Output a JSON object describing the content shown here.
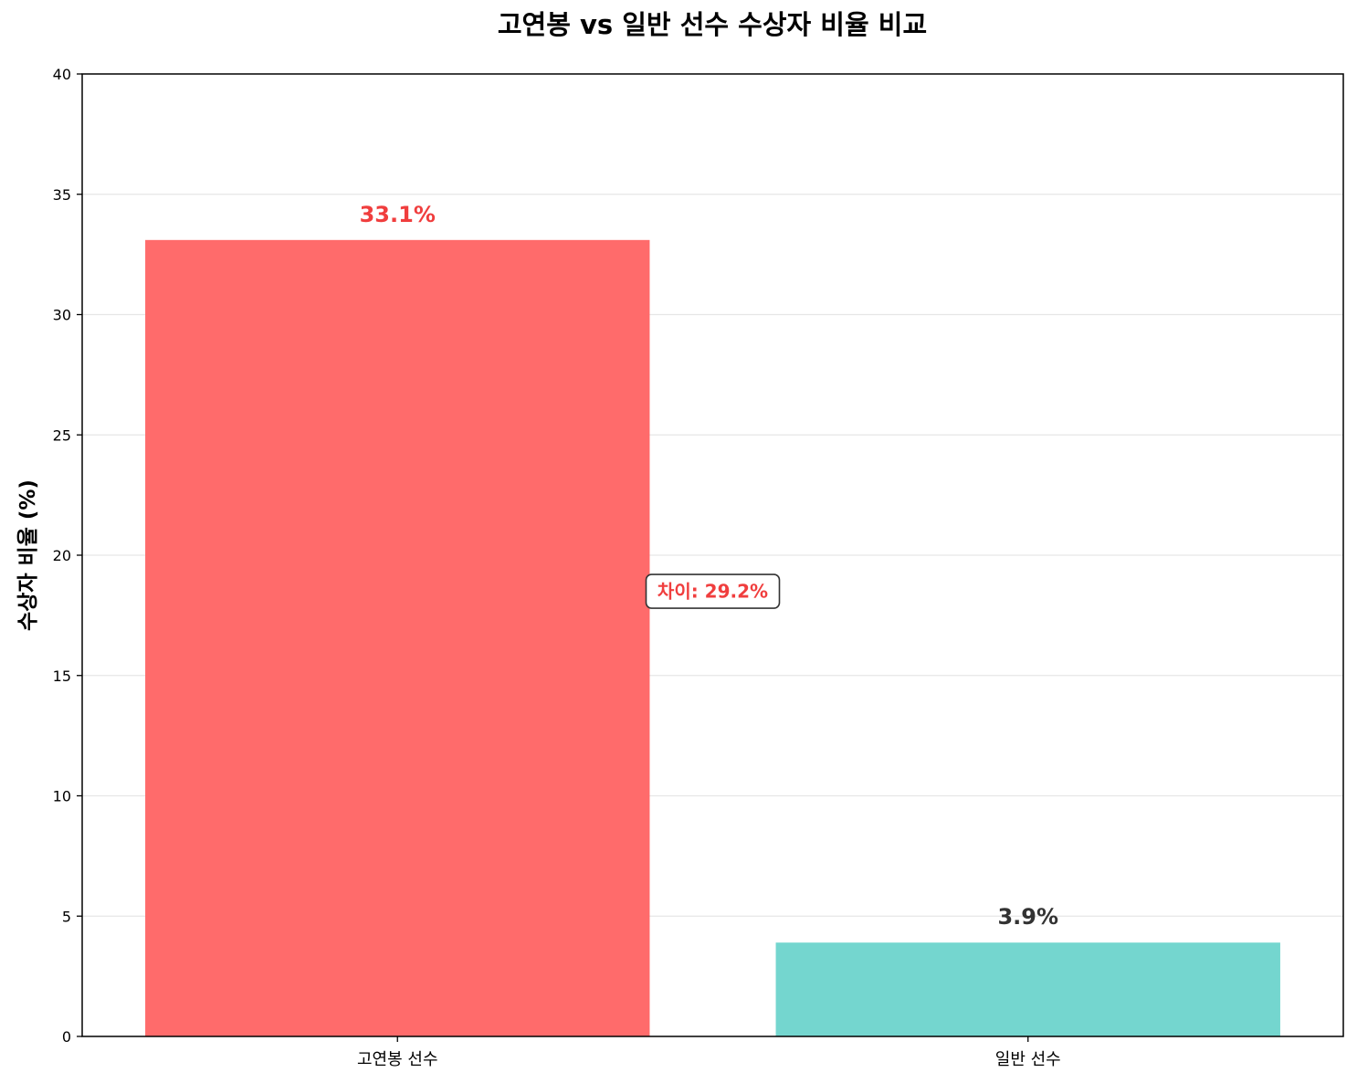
{
  "chart_data": {
    "type": "bar",
    "title": "고연봉 vs 일반 선수 수상자 비율 비교",
    "xlabel": "",
    "ylabel": "수상자 비율 (%)",
    "categories": [
      "고연봉 선수",
      "일반 선수"
    ],
    "values": [
      33.1,
      3.9
    ],
    "value_labels": [
      "33.1%",
      "3.9%"
    ],
    "ylim": [
      0,
      40
    ],
    "yticks": [
      0,
      5,
      10,
      15,
      20,
      25,
      30,
      35,
      40
    ],
    "grid": "y",
    "bar_colors": [
      "#ff6b6b",
      "#74d6cf"
    ],
    "value_label_colors": [
      "#f03e3e",
      "#333333"
    ],
    "annotation": {
      "text": "차이: 29.2%",
      "color": "#f03e3e",
      "border_color": "#333333"
    }
  }
}
